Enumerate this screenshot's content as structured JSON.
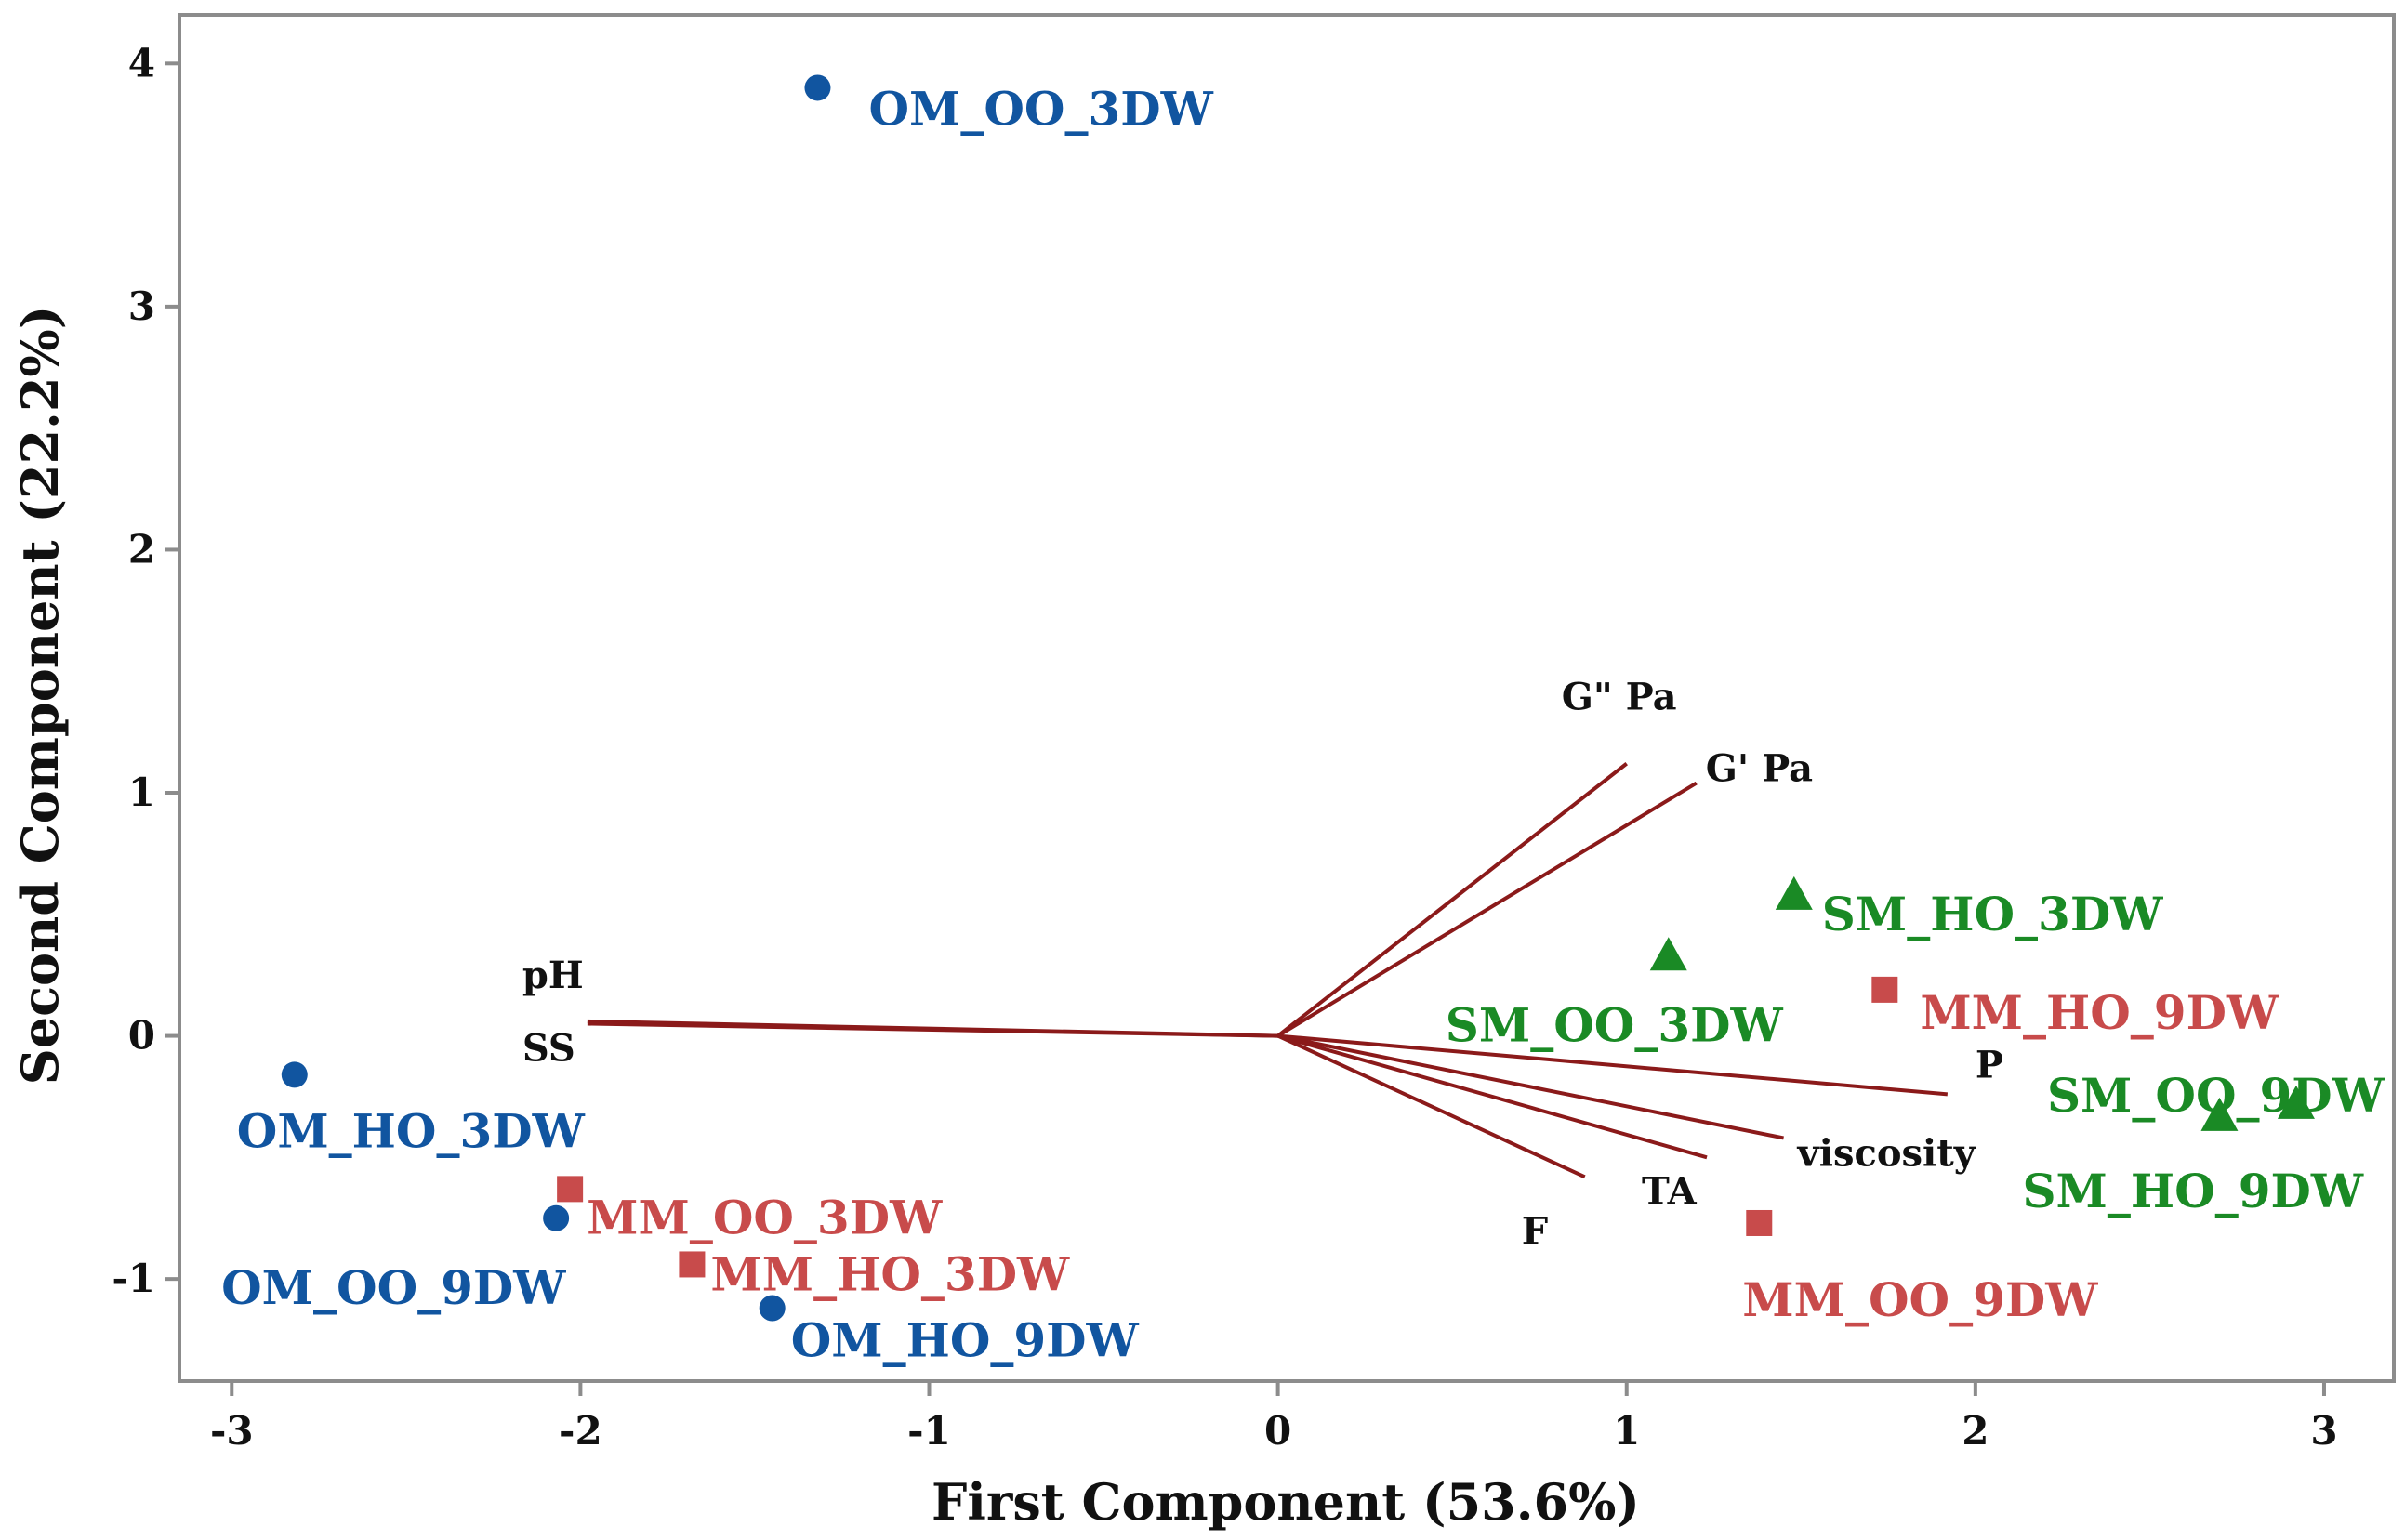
{
  "chart_data": {
    "type": "scatter",
    "subtype": "biplot",
    "xlabel": "First Component (53.6%)",
    "ylabel": "Second Component (22.2%)",
    "xlim": [
      -3.15,
      3.2
    ],
    "ylim": [
      -1.42,
      4.2
    ],
    "xticks": [
      -3,
      -2,
      -1,
      0,
      1,
      2,
      3
    ],
    "xtick_labels": [
      "-3",
      "-2",
      "-1",
      "0",
      "1",
      "2",
      "3"
    ],
    "yticks": [
      -1,
      0,
      1,
      2,
      3,
      4
    ],
    "ytick_labels": [
      "-1",
      "0",
      "1",
      "2",
      "3",
      "4"
    ],
    "grid": false,
    "colors": {
      "OM": "#1155A0",
      "MM": "#C84B4B",
      "SM": "#1A8A25",
      "vector": "#8B1A1A"
    },
    "series": [
      {
        "name": "OM",
        "marker": "circle",
        "color": "#1155A0",
        "points": [
          {
            "label": "OM_OO_3DW",
            "x": -1.32,
            "y": 3.9
          },
          {
            "label": "OM_HO_3DW",
            "x": -2.82,
            "y": -0.16
          },
          {
            "label": "OM_OO_9DW",
            "x": -2.07,
            "y": -0.75
          },
          {
            "label": "OM_HO_9DW",
            "x": -1.45,
            "y": -1.12
          }
        ]
      },
      {
        "name": "MM",
        "marker": "square",
        "color": "#C84B4B",
        "points": [
          {
            "label": "MM_OO_3DW",
            "x": -2.03,
            "y": -0.63
          },
          {
            "label": "MM_HO_3DW",
            "x": -1.68,
            "y": -0.94
          },
          {
            "label": "MM_HO_9DW",
            "x": 1.74,
            "y": 0.19
          },
          {
            "label": "MM_OO_9DW",
            "x": 1.38,
            "y": -0.77
          }
        ]
      },
      {
        "name": "SM",
        "marker": "triangle",
        "color": "#1A8A25",
        "points": [
          {
            "label": "SM_HO_3DW",
            "x": 1.48,
            "y": 0.58
          },
          {
            "label": "SM_OO_3DW",
            "x": 1.12,
            "y": 0.33
          },
          {
            "label": "SM_OO_9DW",
            "x": 2.92,
            "y": -0.28
          },
          {
            "label": "SM_HO_9DW",
            "x": 2.7,
            "y": -0.33
          }
        ]
      }
    ],
    "vectors": [
      {
        "label": "G\"  Pa",
        "x": 1.0,
        "y": 1.12
      },
      {
        "label": "G' Pa",
        "x": 1.2,
        "y": 1.04
      },
      {
        "label": "pH",
        "x": -1.98,
        "y": 0.06
      },
      {
        "label": "SS",
        "x": -1.98,
        "y": 0.05
      },
      {
        "label": "P",
        "x": 1.92,
        "y": -0.24
      },
      {
        "label": "viscosity",
        "x": 1.45,
        "y": -0.42
      },
      {
        "label": "TA",
        "x": 1.23,
        "y": -0.5
      },
      {
        "label": "F",
        "x": 0.88,
        "y": -0.58
      }
    ]
  }
}
